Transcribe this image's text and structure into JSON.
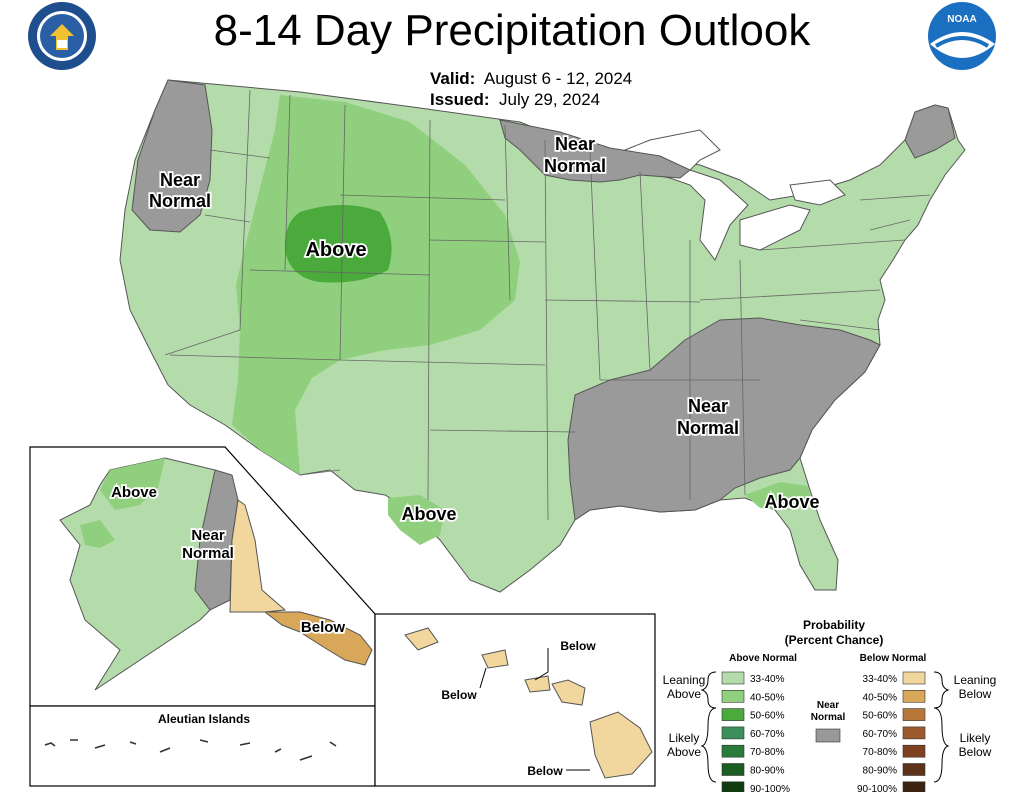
{
  "header": {
    "title": "8-14 Day Precipitation Outlook",
    "valid_label": "Valid:",
    "valid_value": "August 6 - 12, 2024",
    "issued_label": "Issued:",
    "issued_value": "July 29, 2024"
  },
  "logos": {
    "left": "DEPARTMENT OF COMMERCE · UNITED STATES OF AMERICA",
    "right": "NOAA"
  },
  "map_labels": {
    "conus_nw": [
      "Near",
      "Normal"
    ],
    "conus_rockies": "Above",
    "conus_north": [
      "Near",
      "Normal"
    ],
    "conus_southeast": [
      "Near",
      "Normal"
    ],
    "conus_texas": "Above",
    "conus_florida": "Above",
    "alaska_west": "Above",
    "alaska_east": [
      "Near",
      "Normal"
    ],
    "alaska_panhandle": "Below",
    "aleutian_title": "Aleutian Islands",
    "hawaii_1": "Below",
    "hawaii_2": "Below",
    "hawaii_3": "Below"
  },
  "legend": {
    "title_1": "Probability",
    "title_2": "(Percent Chance)",
    "above_header": "Above Normal",
    "below_header": "Below Normal",
    "near_label_1": "Near",
    "near_label_2": "Normal",
    "leaning_above": [
      "Leaning",
      "Above"
    ],
    "likely_above": [
      "Likely",
      "Above"
    ],
    "leaning_below": [
      "Leaning",
      "Below"
    ],
    "likely_below": [
      "Likely",
      "Below"
    ],
    "above": [
      {
        "label": "33-40%",
        "color": "#b3dcaa"
      },
      {
        "label": "40-50%",
        "color": "#8fcf7d"
      },
      {
        "label": "50-60%",
        "color": "#4aaa3c"
      },
      {
        "label": "60-70%",
        "color": "#3b8f5a"
      },
      {
        "label": "70-80%",
        "color": "#2a7a3a"
      },
      {
        "label": "80-90%",
        "color": "#1c5e22"
      },
      {
        "label": "90-100%",
        "color": "#0f3d10"
      }
    ],
    "below": [
      {
        "label": "33-40%",
        "color": "#f1d69e"
      },
      {
        "label": "40-50%",
        "color": "#d9a75a"
      },
      {
        "label": "50-60%",
        "color": "#b8783a"
      },
      {
        "label": "60-70%",
        "color": "#9c5a2c"
      },
      {
        "label": "70-80%",
        "color": "#7f4220"
      },
      {
        "label": "80-90%",
        "color": "#5e3218"
      },
      {
        "label": "90-100%",
        "color": "#3c2210"
      }
    ],
    "near_color": "#999999"
  },
  "colors": {
    "near_normal": "#9a9a9a",
    "above_33": "#b3dcaa",
    "above_40": "#8fcf7d",
    "above_50": "#4aaa3c",
    "below_33": "#f1d69e",
    "below_40": "#d9a75a",
    "water": "#ffffff"
  }
}
